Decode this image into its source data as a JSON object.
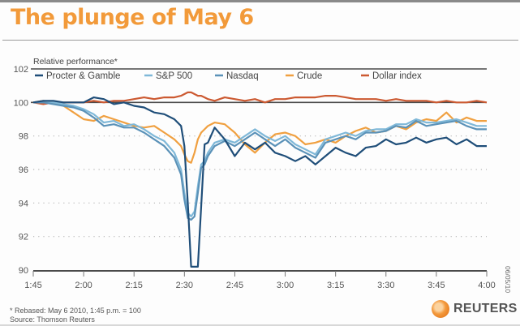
{
  "chart_data": {
    "type": "line",
    "title": "The plunge of May 6",
    "ylabel": "Relative performance*",
    "xlabel": "",
    "ylim": [
      90,
      102
    ],
    "yticks": [
      90,
      92,
      94,
      96,
      98,
      100,
      102
    ],
    "ytick_labels": [
      "90",
      "92",
      "94",
      "96",
      "98",
      "100",
      "102"
    ],
    "xlim_minutes": [
      0,
      135
    ],
    "xticks_minutes": [
      0,
      15,
      30,
      45,
      60,
      75,
      90,
      105,
      120,
      135
    ],
    "xtick_labels": [
      "1:45",
      "2:00",
      "2:15",
      "2:30",
      "2:45",
      "3:00",
      "3:15",
      "3:30",
      "3:45",
      "4:00"
    ],
    "x_unit": "minutes after 1:45 p.m.",
    "grid": "dotted horizontal at 92-98",
    "legend_placement": "top",
    "x": [
      0,
      3,
      6,
      9,
      12,
      15,
      18,
      21,
      24,
      27,
      30,
      33,
      36,
      39,
      42,
      44,
      45,
      46,
      47,
      48,
      49,
      50,
      51,
      52,
      54,
      57,
      60,
      63,
      66,
      69,
      72,
      75,
      78,
      81,
      84,
      87,
      90,
      93,
      96,
      99,
      102,
      105,
      108,
      111,
      114,
      117,
      120,
      123,
      126,
      129,
      132,
      135
    ],
    "series": [
      {
        "name": "Procter & Gamble",
        "color": "#1f4e79",
        "values": [
          100.0,
          100.1,
          100.1,
          100.0,
          100.0,
          100.0,
          100.3,
          100.2,
          99.9,
          100.0,
          99.8,
          99.7,
          99.4,
          99.3,
          99.0,
          98.6,
          97.4,
          94.0,
          90.2,
          90.2,
          90.2,
          93.8,
          97.5,
          97.6,
          98.5,
          97.8,
          96.8,
          97.6,
          97.2,
          97.6,
          97.0,
          96.8,
          96.5,
          96.8,
          96.3,
          96.8,
          97.3,
          97.0,
          96.8,
          97.3,
          97.4,
          97.8,
          97.5,
          97.6,
          97.9,
          97.6,
          97.8,
          97.9,
          97.5,
          97.8,
          97.4,
          97.4
        ]
      },
      {
        "name": "S&P 500",
        "color": "#7fb8d8",
        "values": [
          100.0,
          100.0,
          100.0,
          99.9,
          99.8,
          99.6,
          99.3,
          98.8,
          98.9,
          98.6,
          98.7,
          98.4,
          98.0,
          97.7,
          97.0,
          96.0,
          94.6,
          93.4,
          93.2,
          93.5,
          95.0,
          96.3,
          96.5,
          97.0,
          97.6,
          97.8,
          97.6,
          98.0,
          98.4,
          98.0,
          97.7,
          98.0,
          97.5,
          97.2,
          96.9,
          97.8,
          98.0,
          98.2,
          98.0,
          98.3,
          98.4,
          98.4,
          98.7,
          98.7,
          99.0,
          98.8,
          98.8,
          98.9,
          99.0,
          98.8,
          98.6,
          98.6
        ]
      },
      {
        "name": "Nasdaq",
        "color": "#5b92b8",
        "values": [
          100.0,
          100.0,
          99.9,
          99.8,
          99.7,
          99.5,
          99.1,
          98.6,
          98.7,
          98.5,
          98.5,
          98.2,
          97.8,
          97.4,
          96.7,
          95.7,
          94.2,
          93.1,
          93.0,
          93.2,
          94.6,
          96.1,
          96.3,
          96.8,
          97.4,
          97.7,
          97.4,
          97.8,
          98.2,
          97.8,
          97.4,
          97.8,
          97.3,
          97.0,
          96.7,
          97.6,
          97.8,
          98.0,
          97.8,
          98.2,
          98.2,
          98.3,
          98.6,
          98.5,
          98.9,
          98.6,
          98.7,
          98.8,
          98.9,
          98.6,
          98.4,
          98.4
        ]
      },
      {
        "name": "Crude",
        "color": "#f0a040",
        "values": [
          100.0,
          100.1,
          100.0,
          99.8,
          99.4,
          99.0,
          98.9,
          99.2,
          99.0,
          98.8,
          98.6,
          98.5,
          98.6,
          98.2,
          97.8,
          97.4,
          96.9,
          96.5,
          96.4,
          97.0,
          97.8,
          98.2,
          98.4,
          98.6,
          98.8,
          98.7,
          98.2,
          97.5,
          97.0,
          97.6,
          98.1,
          98.2,
          98.0,
          97.5,
          97.6,
          97.8,
          97.6,
          98.0,
          98.3,
          98.5,
          98.2,
          98.3,
          98.6,
          98.4,
          98.8,
          99.0,
          98.9,
          99.4,
          98.8,
          99.1,
          98.9,
          98.9
        ]
      },
      {
        "name": "Dollar index",
        "color": "#cc5a32",
        "values": [
          100.0,
          99.9,
          100.0,
          100.0,
          100.0,
          100.0,
          100.1,
          100.0,
          100.1,
          100.1,
          100.2,
          100.3,
          100.2,
          100.3,
          100.3,
          100.4,
          100.5,
          100.6,
          100.6,
          100.5,
          100.4,
          100.4,
          100.3,
          100.2,
          100.1,
          100.3,
          100.2,
          100.1,
          100.2,
          100.0,
          100.2,
          100.2,
          100.3,
          100.3,
          100.3,
          100.4,
          100.4,
          100.3,
          100.2,
          100.2,
          100.2,
          100.1,
          100.2,
          100.1,
          100.1,
          100.1,
          100.0,
          100.1,
          100.0,
          100.0,
          100.1,
          100.0
        ]
      }
    ]
  },
  "footnotes": {
    "rebased": "* Rebased: May 6 2010, 1:45 p.m. = 100",
    "source": "Source: Thomson Reuters"
  },
  "datestamp": "06/05/10",
  "brand": {
    "name": "REUTERS"
  }
}
